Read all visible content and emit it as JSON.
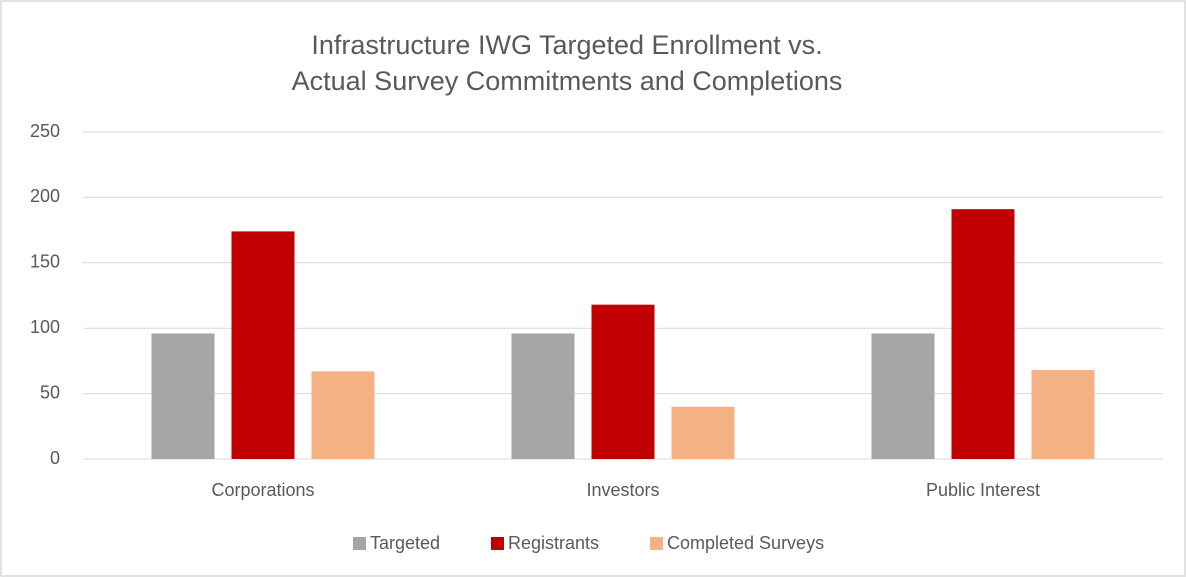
{
  "chart_data": {
    "type": "bar",
    "title": [
      "Infrastructure IWG Targeted Enrollment vs.",
      "Actual Survey Commitments and Completions"
    ],
    "categories": [
      "Corporations",
      "Investors",
      "Public Interest"
    ],
    "series": [
      {
        "name": "Targeted",
        "color": "#a5a5a5",
        "values": [
          96,
          96,
          96
        ]
      },
      {
        "name": "Registrants",
        "color": "#c00000",
        "values": [
          174,
          118,
          191
        ]
      },
      {
        "name": "Completed Surveys",
        "color": "#f4b183",
        "values": [
          67,
          40,
          68
        ]
      }
    ],
    "ylim": [
      0,
      250
    ],
    "yticks": [
      0,
      50,
      100,
      150,
      200,
      250
    ],
    "grid": true,
    "legend": "bottom"
  }
}
